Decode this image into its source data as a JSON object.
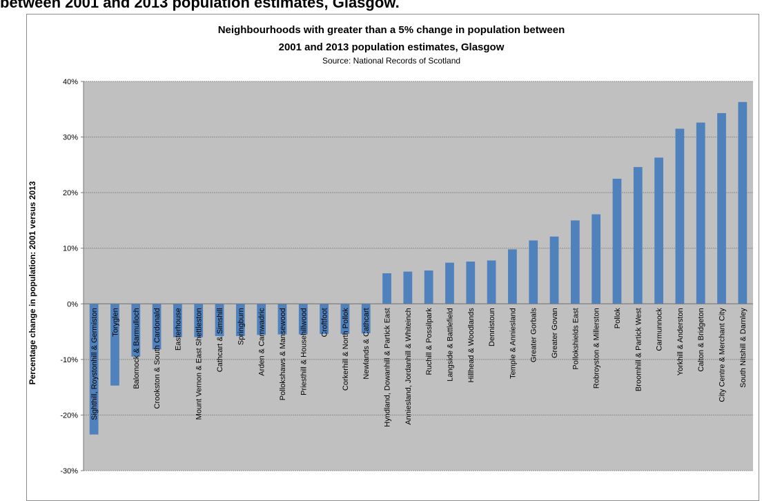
{
  "page_heading": "between 2001 and 2013 population estimates, Glasgow.",
  "chart_data": {
    "type": "bar",
    "title_line1": "Neighbourhoods with greater than a 5% change in population between",
    "title_line2": "2001 and 2013 population estimates, Glasgow",
    "subtitle": "Source: National Records of Scotland",
    "xlabel": "",
    "ylabel": "Percentage change in population: 2001 versus 2013",
    "ylim": [
      -30,
      40
    ],
    "yticks": [
      -30,
      -20,
      -10,
      0,
      10,
      20,
      30,
      40
    ],
    "ytick_labels": [
      "-30%",
      "-20%",
      "-10%",
      "0%",
      "10%",
      "20%",
      "30%",
      "40%"
    ],
    "grid": true,
    "bar_color": "#4f81bd",
    "plot_background": "#c0c0c0",
    "categories": [
      "Sighthill, Roystonhill & Germiston",
      "Toryglen",
      "Balornock & Barmulloch",
      "Crookston & South Cardonald",
      "Easterhouse",
      "Mount Vernon & East Shettleston",
      "Cathcart & Simshill",
      "Springburn",
      "Arden & Carnwadric",
      "Pollokshaws & Mansewood",
      "Priesthill & Househillwood",
      "Croftfoot",
      "Corkerhill & North Pollok",
      "Newlands & Cathcart",
      "Hyndland, Dowanhill & Partick East",
      "Anniesland, Jordanhill & Whiteinch",
      "Ruchill & Possilpark",
      "Langside & Battlefield",
      "Hillhead & Woodlands",
      "Dennistoun",
      "Temple & Anniesland",
      "Greater Gorbals",
      "Greater Govan",
      "Pollokshields East",
      "Robroyston & Millerston",
      "Pollok",
      "Broomhill & Partick West",
      "Carmunnock",
      "Yorkhill & Anderston",
      "Calton & Bridgeton",
      "City Centre & Merchant City",
      "South Nitshill & Darnley"
    ],
    "values": [
      -23.5,
      -14.7,
      -9.5,
      -8.2,
      -6.0,
      -6.0,
      -5.8,
      -5.8,
      -5.6,
      -5.5,
      -5.5,
      -5.4,
      -5.4,
      -5.3,
      5.5,
      5.8,
      6.0,
      7.4,
      7.6,
      7.8,
      9.8,
      11.4,
      12.1,
      15.0,
      16.1,
      22.5,
      24.6,
      26.3,
      31.5,
      32.6,
      34.3,
      36.3
    ]
  }
}
